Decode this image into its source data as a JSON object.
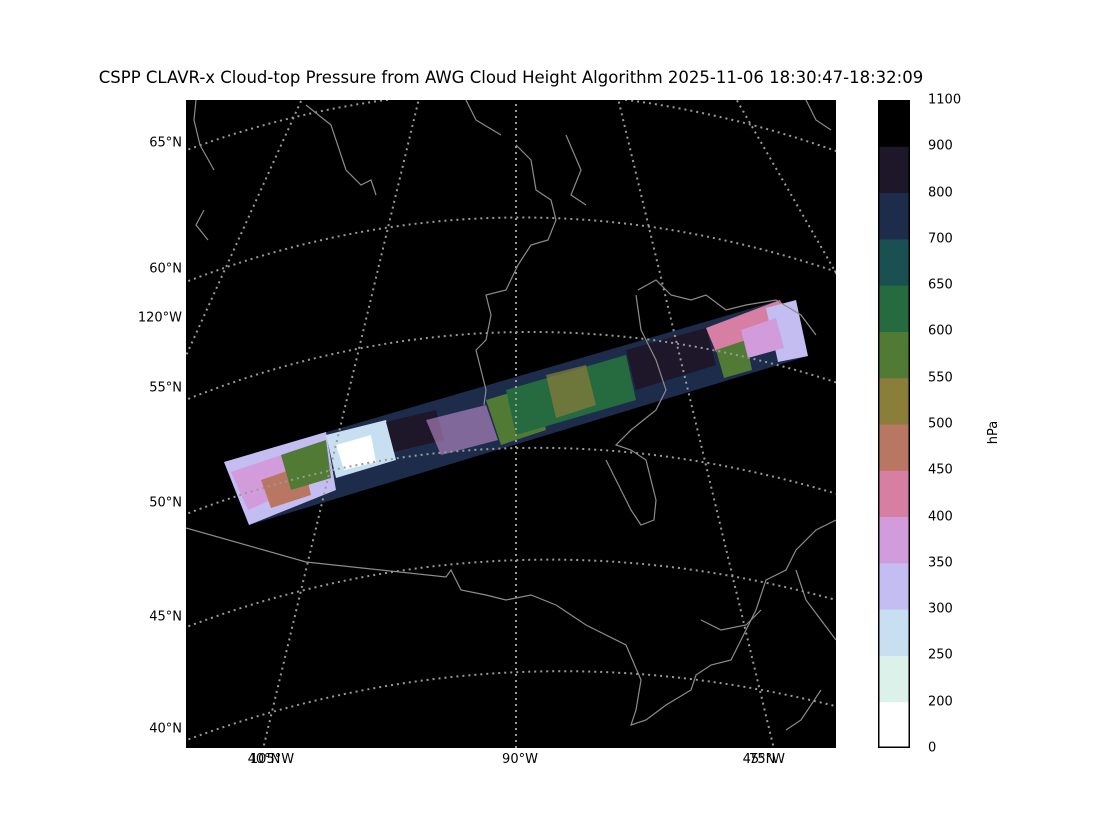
{
  "title": "CSPP CLAVR-x Cloud-top Pressure from AWG Cloud Height Algorithm 2025-11-06 18:30:47-18:32:09",
  "colors": {
    "background": "#000000",
    "coastline": "#8c8c8c",
    "graticule": "#9a9a9a"
  },
  "map": {
    "projection": "conic",
    "lat_labels": [
      {
        "text": "65°N",
        "value": 65
      },
      {
        "text": "60°N",
        "value": 60
      },
      {
        "text": "120°W",
        "value": -120
      },
      {
        "text": "55°N",
        "value": 55
      },
      {
        "text": "50°N",
        "value": 50
      },
      {
        "text": "45°N",
        "value": 45
      },
      {
        "text": "40°N",
        "value": 40
      }
    ],
    "lon_labels": [
      {
        "text": "105°W",
        "value": -105
      },
      {
        "text": "40°N",
        "value": 40
      },
      {
        "text": "90°W",
        "value": -90
      },
      {
        "text": "75°W",
        "value": -75
      },
      {
        "text": "45°N",
        "value": 45
      }
    ]
  },
  "colorbar": {
    "unit": "hPa",
    "ticks": [
      "0",
      "200",
      "250",
      "300",
      "350",
      "400",
      "450",
      "500",
      "550",
      "600",
      "650",
      "700",
      "800",
      "900",
      "1100"
    ],
    "bins": [
      {
        "from": 0,
        "to": 200,
        "color": "#ffffff"
      },
      {
        "from": 200,
        "to": 250,
        "color": "#dcf1ea"
      },
      {
        "from": 250,
        "to": 300,
        "color": "#c8dff2"
      },
      {
        "from": 300,
        "to": 350,
        "color": "#c3bdf2"
      },
      {
        "from": 350,
        "to": 400,
        "color": "#d29bdc"
      },
      {
        "from": 400,
        "to": 450,
        "color": "#d77fa3"
      },
      {
        "from": 450,
        "to": 500,
        "color": "#b97763"
      },
      {
        "from": 500,
        "to": 550,
        "color": "#8b7d3a"
      },
      {
        "from": 550,
        "to": 600,
        "color": "#517b34"
      },
      {
        "from": 600,
        "to": 650,
        "color": "#266a40"
      },
      {
        "from": 650,
        "to": 700,
        "color": "#1a5051"
      },
      {
        "from": 700,
        "to": 800,
        "color": "#1d2c4a"
      },
      {
        "from": 800,
        "to": 900,
        "color": "#1e1629"
      },
      {
        "from": 900,
        "to": 1100,
        "color": "#000000"
      }
    ]
  }
}
